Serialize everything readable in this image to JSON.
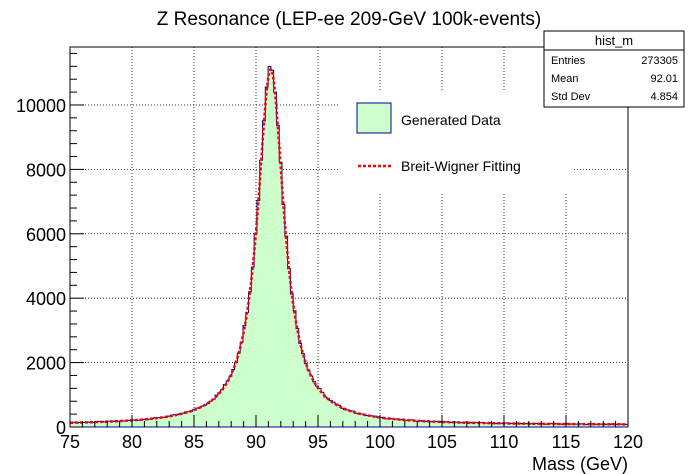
{
  "chart_data": {
    "type": "histogram",
    "title": "Z Resonance (LEP-ee 209-GeV 100k-events)",
    "xlabel": "Mass (GeV)",
    "ylabel": "",
    "xlim": [
      75,
      120
    ],
    "ylim": [
      0,
      11800
    ],
    "x_ticks": [
      75,
      80,
      85,
      90,
      95,
      100,
      105,
      110,
      115,
      120
    ],
    "y_ticks": [
      0,
      2000,
      4000,
      6000,
      8000,
      10000
    ],
    "grid": true,
    "legend_position": "top-right",
    "stats_box": {
      "title": "hist_m",
      "rows": [
        {
          "label": "Entries",
          "value": "273305"
        },
        {
          "label": "Mean",
          "value": "92.01"
        },
        {
          "label": "Std Dev",
          "value": "4.854"
        }
      ]
    },
    "series": [
      {
        "name": "Generated Data",
        "kind": "histogram",
        "fill_color": "#ccffcc",
        "line_color": "#000099",
        "breit_wigner": {
          "mass": 91.19,
          "width": 2.6,
          "peak": 11200,
          "offset": 60
        }
      },
      {
        "name": "Breit-Wigner Fitting",
        "kind": "fit-line",
        "line_color": "#ff0000",
        "dashed": true,
        "breit_wigner": {
          "mass": 91.19,
          "width": 2.6,
          "peak": 11050,
          "offset": 60
        }
      }
    ]
  }
}
